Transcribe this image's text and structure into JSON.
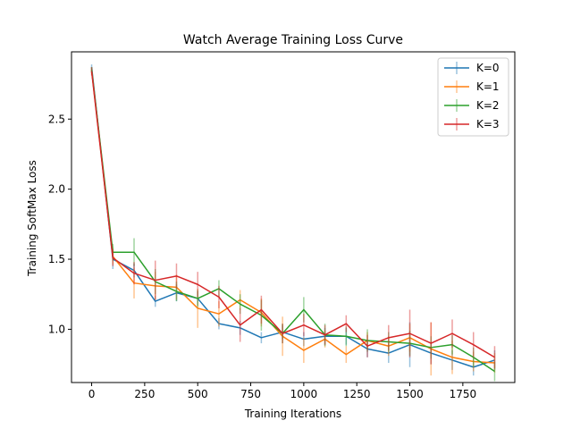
{
  "chart_data": {
    "type": "line",
    "title": "Watch Average Training Loss Curve",
    "xlabel": "Training Iterations",
    "ylabel": "Training SoftMax Loss",
    "xlim": [
      -95,
      1995
    ],
    "ylim": [
      0.62,
      2.98
    ],
    "xticks": [
      0,
      250,
      500,
      750,
      1000,
      1250,
      1500,
      1750
    ],
    "xtick_labels": [
      "0",
      "250",
      "500",
      "750",
      "1000",
      "1250",
      "1500",
      "1750"
    ],
    "yticks": [
      1.0,
      1.5,
      2.0,
      2.5
    ],
    "ytick_labels": [
      "1.0",
      "1.5",
      "2.0",
      "2.5"
    ],
    "grid": false,
    "legend_position": "top-right",
    "x": [
      0,
      100,
      200,
      300,
      400,
      500,
      600,
      700,
      800,
      900,
      1000,
      1100,
      1200,
      1300,
      1400,
      1500,
      1600,
      1700,
      1800,
      1900
    ],
    "series": [
      {
        "name": "K=0",
        "color": "#1f77b4",
        "values": [
          2.87,
          1.5,
          1.42,
          1.2,
          1.26,
          1.22,
          1.04,
          1.01,
          0.94,
          0.98,
          0.93,
          0.95,
          0.95,
          0.86,
          0.83,
          0.89,
          0.83,
          0.78,
          0.73,
          0.78
        ],
        "errors": [
          0.02,
          0.07,
          0.05,
          0.04,
          0.06,
          0.05,
          0.04,
          0.05,
          0.04,
          0.05,
          0.05,
          0.06,
          0.06,
          0.06,
          0.07,
          0.16,
          0.08,
          0.07,
          0.06,
          0.07
        ]
      },
      {
        "name": "K=1",
        "color": "#ff7f0e",
        "values": [
          2.85,
          1.52,
          1.33,
          1.31,
          1.3,
          1.15,
          1.11,
          1.21,
          1.12,
          0.95,
          0.85,
          0.93,
          0.82,
          0.92,
          0.88,
          0.94,
          0.86,
          0.8,
          0.77,
          0.76
        ],
        "errors": [
          0.02,
          0.06,
          0.11,
          0.1,
          0.09,
          0.14,
          0.09,
          0.07,
          0.1,
          0.14,
          0.09,
          0.06,
          0.06,
          0.06,
          0.07,
          0.1,
          0.19,
          0.12,
          0.07,
          0.07
        ]
      },
      {
        "name": "K=2",
        "color": "#2ca02c",
        "values": [
          2.85,
          1.55,
          1.55,
          1.34,
          1.27,
          1.22,
          1.29,
          1.18,
          1.1,
          0.97,
          1.14,
          0.96,
          0.95,
          0.92,
          0.91,
          0.9,
          0.87,
          0.89,
          0.8,
          0.7
        ],
        "errors": [
          0.02,
          0.06,
          0.1,
          0.09,
          0.07,
          0.06,
          0.06,
          0.07,
          0.11,
          0.07,
          0.09,
          0.08,
          0.07,
          0.08,
          0.07,
          0.09,
          0.08,
          0.07,
          0.07,
          0.07
        ]
      },
      {
        "name": "K=3",
        "color": "#d62728",
        "values": [
          2.84,
          1.51,
          1.4,
          1.35,
          1.38,
          1.32,
          1.23,
          1.03,
          1.14,
          0.97,
          1.03,
          0.96,
          1.04,
          0.88,
          0.94,
          0.97,
          0.9,
          0.97,
          0.89,
          0.8
        ],
        "errors": [
          0.03,
          0.06,
          0.08,
          0.14,
          0.09,
          0.09,
          0.08,
          0.12,
          0.1,
          0.07,
          0.08,
          0.07,
          0.06,
          0.08,
          0.09,
          0.17,
          0.15,
          0.1,
          0.09,
          0.08
        ]
      }
    ]
  }
}
